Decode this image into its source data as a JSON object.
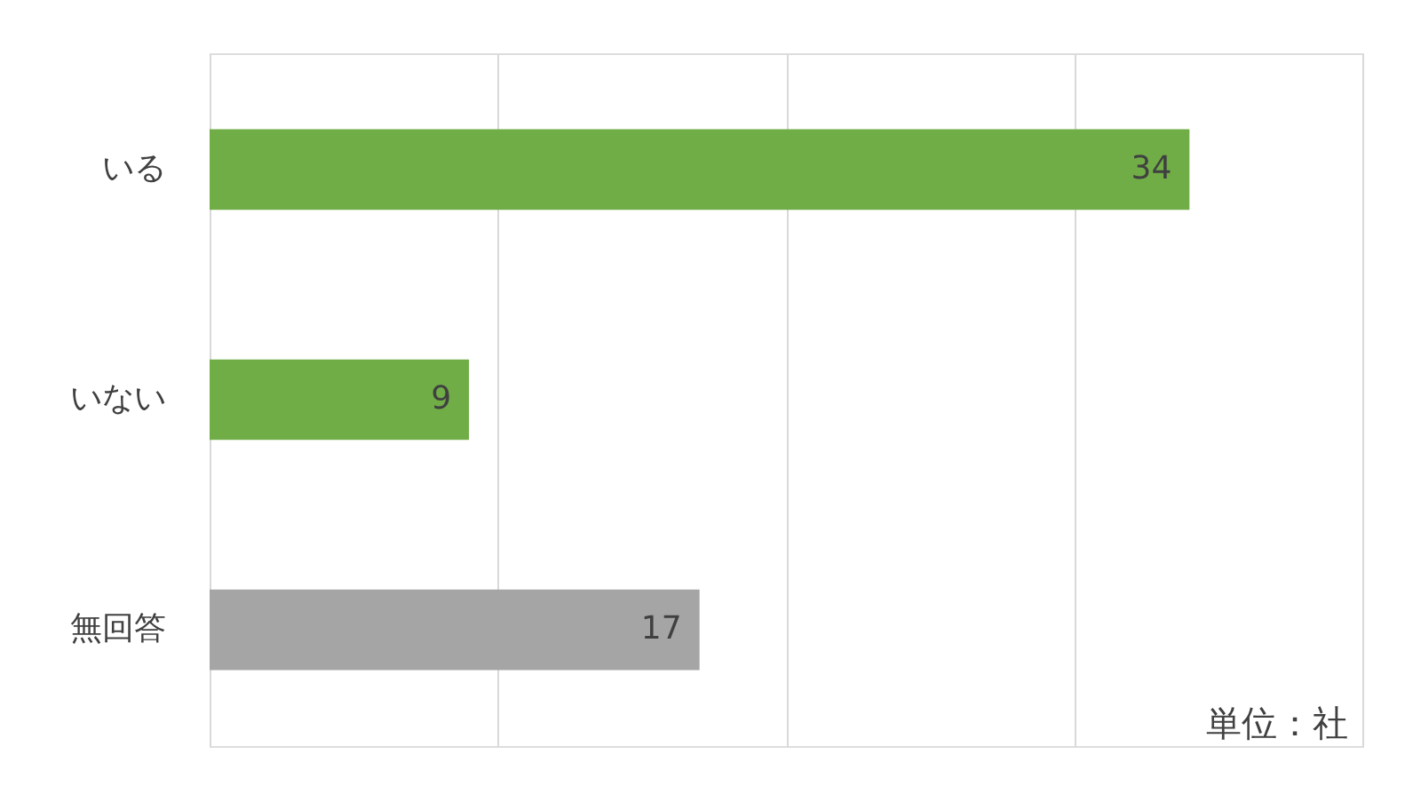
{
  "chart_data": {
    "type": "bar",
    "orientation": "horizontal",
    "categories": [
      "いる",
      "いない",
      "無回答"
    ],
    "values": [
      34,
      9,
      17
    ],
    "colors": [
      "#70ad47",
      "#70ad47",
      "#a5a5a5"
    ],
    "xlim": [
      0,
      40
    ],
    "xticks": [
      {
        "value": 0,
        "label": null
      },
      {
        "value": 10,
        "label": null
      },
      {
        "value": 20,
        "label": null
      },
      {
        "value": 30,
        "label": null
      },
      {
        "value": 40,
        "label": null
      }
    ],
    "tick_labels": "y",
    "grid": "x",
    "data_labels": true,
    "annotations": [
      "単位：社"
    ]
  }
}
